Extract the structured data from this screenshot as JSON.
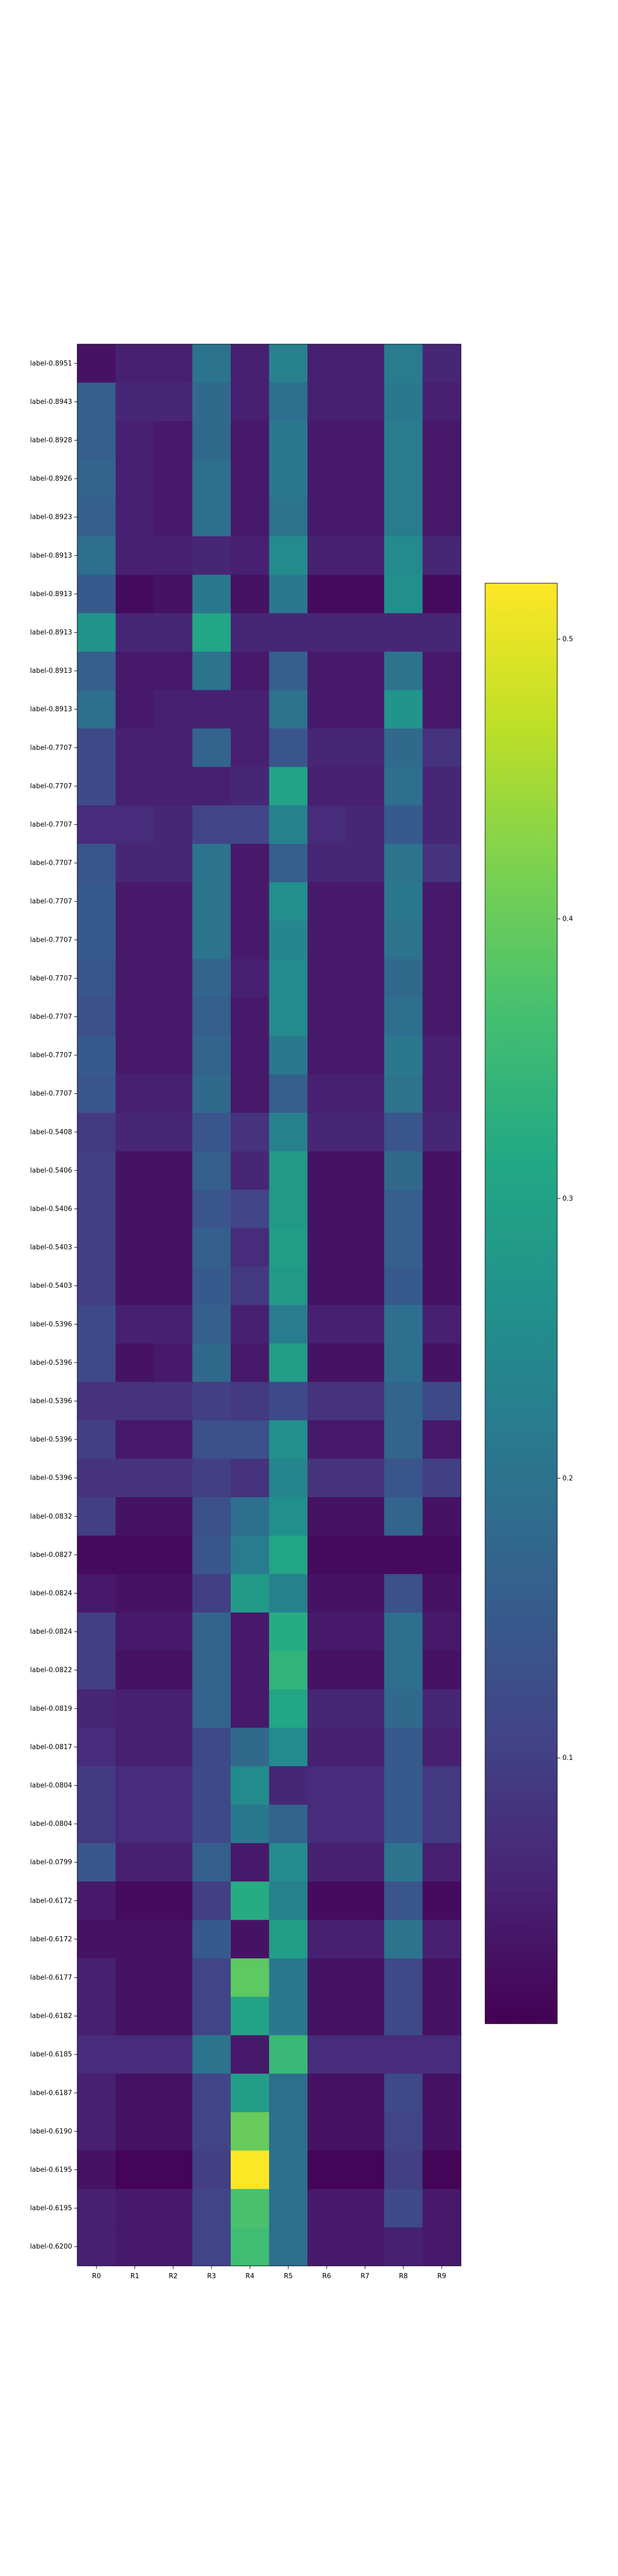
{
  "chart_data": {
    "type": "heatmap",
    "title": "",
    "xlabel": "",
    "ylabel": "",
    "columns": [
      "R0",
      "R1",
      "R2",
      "R3",
      "R4",
      "R5",
      "R6",
      "R7",
      "R8",
      "R9"
    ],
    "rows": [
      {
        "label": "label-0.8951",
        "values": [
          0.03,
          0.05,
          0.05,
          0.2,
          0.05,
          0.23,
          0.05,
          0.05,
          0.22,
          0.06
        ]
      },
      {
        "label": "label-0.8943",
        "values": [
          0.16,
          0.06,
          0.06,
          0.18,
          0.05,
          0.19,
          0.05,
          0.05,
          0.21,
          0.05
        ]
      },
      {
        "label": "label-0.8928",
        "values": [
          0.16,
          0.05,
          0.04,
          0.18,
          0.04,
          0.21,
          0.04,
          0.04,
          0.22,
          0.04
        ]
      },
      {
        "label": "label-0.8926",
        "values": [
          0.17,
          0.05,
          0.04,
          0.19,
          0.04,
          0.21,
          0.04,
          0.04,
          0.22,
          0.04
        ]
      },
      {
        "label": "label-0.8923",
        "values": [
          0.16,
          0.05,
          0.04,
          0.19,
          0.04,
          0.2,
          0.04,
          0.04,
          0.22,
          0.04
        ]
      },
      {
        "label": "label-0.8913",
        "values": [
          0.19,
          0.05,
          0.05,
          0.06,
          0.05,
          0.25,
          0.05,
          0.05,
          0.25,
          0.06
        ]
      },
      {
        "label": "label-0.8913",
        "values": [
          0.15,
          0.02,
          0.03,
          0.21,
          0.03,
          0.21,
          0.02,
          0.02,
          0.26,
          0.02
        ]
      },
      {
        "label": "label-0.8913",
        "values": [
          0.27,
          0.06,
          0.06,
          0.31,
          0.06,
          0.06,
          0.06,
          0.06,
          0.06,
          0.06
        ]
      },
      {
        "label": "label-0.8913",
        "values": [
          0.16,
          0.04,
          0.04,
          0.2,
          0.04,
          0.16,
          0.04,
          0.04,
          0.2,
          0.04
        ]
      },
      {
        "label": "label-0.8913",
        "values": [
          0.19,
          0.04,
          0.05,
          0.05,
          0.05,
          0.2,
          0.04,
          0.04,
          0.27,
          0.04
        ]
      },
      {
        "label": "label-0.7707",
        "values": [
          0.12,
          0.05,
          0.05,
          0.17,
          0.05,
          0.14,
          0.06,
          0.06,
          0.18,
          0.08
        ]
      },
      {
        "label": "label-0.7707",
        "values": [
          0.12,
          0.05,
          0.05,
          0.05,
          0.06,
          0.3,
          0.05,
          0.05,
          0.19,
          0.06
        ]
      },
      {
        "label": "label-0.7707",
        "values": [
          0.07,
          0.07,
          0.06,
          0.11,
          0.11,
          0.23,
          0.07,
          0.06,
          0.15,
          0.06
        ]
      },
      {
        "label": "label-0.7707",
        "values": [
          0.14,
          0.06,
          0.06,
          0.2,
          0.04,
          0.16,
          0.06,
          0.06,
          0.2,
          0.08
        ]
      },
      {
        "label": "label-0.7707",
        "values": [
          0.15,
          0.04,
          0.04,
          0.2,
          0.04,
          0.26,
          0.04,
          0.04,
          0.21,
          0.04
        ]
      },
      {
        "label": "label-0.7707",
        "values": [
          0.15,
          0.04,
          0.04,
          0.2,
          0.04,
          0.24,
          0.04,
          0.04,
          0.2,
          0.04
        ]
      },
      {
        "label": "label-0.7707",
        "values": [
          0.14,
          0.04,
          0.04,
          0.17,
          0.05,
          0.25,
          0.04,
          0.04,
          0.18,
          0.04
        ]
      },
      {
        "label": "label-0.7707",
        "values": [
          0.13,
          0.04,
          0.04,
          0.16,
          0.04,
          0.25,
          0.04,
          0.04,
          0.19,
          0.04
        ]
      },
      {
        "label": "label-0.7707",
        "values": [
          0.15,
          0.04,
          0.04,
          0.17,
          0.04,
          0.21,
          0.04,
          0.04,
          0.21,
          0.05
        ]
      },
      {
        "label": "label-0.7707",
        "values": [
          0.14,
          0.05,
          0.05,
          0.18,
          0.04,
          0.16,
          0.05,
          0.05,
          0.2,
          0.05
        ]
      },
      {
        "label": "label-0.5408",
        "values": [
          0.09,
          0.06,
          0.06,
          0.14,
          0.08,
          0.23,
          0.06,
          0.06,
          0.14,
          0.06
        ]
      },
      {
        "label": "label-0.5406",
        "values": [
          0.1,
          0.03,
          0.03,
          0.16,
          0.06,
          0.28,
          0.03,
          0.03,
          0.18,
          0.03
        ]
      },
      {
        "label": "label-0.5406",
        "values": [
          0.1,
          0.03,
          0.03,
          0.14,
          0.11,
          0.28,
          0.03,
          0.03,
          0.16,
          0.03
        ]
      },
      {
        "label": "label-0.5403",
        "values": [
          0.1,
          0.03,
          0.03,
          0.16,
          0.07,
          0.29,
          0.03,
          0.03,
          0.16,
          0.03
        ]
      },
      {
        "label": "label-0.5403",
        "values": [
          0.1,
          0.03,
          0.03,
          0.15,
          0.09,
          0.28,
          0.03,
          0.03,
          0.15,
          0.03
        ]
      },
      {
        "label": "label-0.5396",
        "values": [
          0.12,
          0.05,
          0.05,
          0.16,
          0.05,
          0.22,
          0.05,
          0.05,
          0.19,
          0.05
        ]
      },
      {
        "label": "label-0.5396",
        "values": [
          0.12,
          0.03,
          0.04,
          0.18,
          0.04,
          0.29,
          0.03,
          0.03,
          0.19,
          0.03
        ]
      },
      {
        "label": "label-0.5396",
        "values": [
          0.08,
          0.08,
          0.08,
          0.1,
          0.09,
          0.12,
          0.08,
          0.08,
          0.17,
          0.12
        ]
      },
      {
        "label": "label-0.5396",
        "values": [
          0.1,
          0.04,
          0.04,
          0.13,
          0.13,
          0.26,
          0.04,
          0.04,
          0.17,
          0.04
        ]
      },
      {
        "label": "label-0.5396",
        "values": [
          0.08,
          0.08,
          0.08,
          0.1,
          0.08,
          0.24,
          0.08,
          0.08,
          0.14,
          0.1
        ]
      },
      {
        "label": "label-0.0832",
        "values": [
          0.1,
          0.03,
          0.03,
          0.13,
          0.19,
          0.26,
          0.03,
          0.03,
          0.17,
          0.03
        ]
      },
      {
        "label": "label-0.0827",
        "values": [
          0.02,
          0.02,
          0.02,
          0.14,
          0.22,
          0.31,
          0.02,
          0.02,
          0.02,
          0.02
        ]
      },
      {
        "label": "label-0.0824",
        "values": [
          0.04,
          0.03,
          0.03,
          0.1,
          0.28,
          0.23,
          0.03,
          0.03,
          0.13,
          0.03
        ]
      },
      {
        "label": "label-0.0824",
        "values": [
          0.1,
          0.04,
          0.04,
          0.17,
          0.04,
          0.32,
          0.04,
          0.04,
          0.19,
          0.04
        ]
      },
      {
        "label": "label-0.0822",
        "values": [
          0.1,
          0.03,
          0.03,
          0.17,
          0.04,
          0.34,
          0.03,
          0.03,
          0.19,
          0.03
        ]
      },
      {
        "label": "label-0.0819",
        "values": [
          0.06,
          0.05,
          0.05,
          0.17,
          0.04,
          0.31,
          0.06,
          0.06,
          0.18,
          0.06
        ]
      },
      {
        "label": "label-0.0817",
        "values": [
          0.07,
          0.05,
          0.05,
          0.12,
          0.18,
          0.25,
          0.05,
          0.05,
          0.15,
          0.05
        ]
      },
      {
        "label": "label-0.0804",
        "values": [
          0.09,
          0.07,
          0.07,
          0.12,
          0.25,
          0.06,
          0.07,
          0.07,
          0.15,
          0.09
        ]
      },
      {
        "label": "label-0.0804",
        "values": [
          0.09,
          0.07,
          0.07,
          0.12,
          0.21,
          0.17,
          0.07,
          0.07,
          0.15,
          0.09
        ]
      },
      {
        "label": "label-0.0799",
        "values": [
          0.14,
          0.05,
          0.05,
          0.16,
          0.04,
          0.25,
          0.05,
          0.05,
          0.2,
          0.05
        ]
      },
      {
        "label": "label-0.6172",
        "values": [
          0.04,
          0.02,
          0.02,
          0.1,
          0.32,
          0.23,
          0.02,
          0.02,
          0.14,
          0.02
        ]
      },
      {
        "label": "label-0.6172",
        "values": [
          0.03,
          0.03,
          0.03,
          0.15,
          0.03,
          0.29,
          0.05,
          0.05,
          0.2,
          0.05
        ]
      },
      {
        "label": "label-0.6177",
        "values": [
          0.05,
          0.03,
          0.03,
          0.11,
          0.39,
          0.21,
          0.03,
          0.03,
          0.12,
          0.03
        ]
      },
      {
        "label": "label-0.6182",
        "values": [
          0.05,
          0.03,
          0.03,
          0.11,
          0.3,
          0.21,
          0.03,
          0.03,
          0.12,
          0.03
        ]
      },
      {
        "label": "label-0.6185",
        "values": [
          0.07,
          0.07,
          0.07,
          0.2,
          0.04,
          0.35,
          0.07,
          0.07,
          0.07,
          0.07
        ]
      },
      {
        "label": "label-0.6187",
        "values": [
          0.05,
          0.03,
          0.03,
          0.11,
          0.29,
          0.19,
          0.03,
          0.03,
          0.12,
          0.03
        ]
      },
      {
        "label": "label-0.6190",
        "values": [
          0.05,
          0.03,
          0.03,
          0.11,
          0.4,
          0.19,
          0.03,
          0.03,
          0.11,
          0.03
        ]
      },
      {
        "label": "label-0.6195",
        "values": [
          0.03,
          0.01,
          0.01,
          0.1,
          0.52,
          0.19,
          0.01,
          0.01,
          0.1,
          0.01
        ]
      },
      {
        "label": "label-0.6195",
        "values": [
          0.05,
          0.04,
          0.04,
          0.11,
          0.37,
          0.19,
          0.04,
          0.04,
          0.12,
          0.04
        ]
      },
      {
        "label": "label-0.6200",
        "values": [
          0.05,
          0.04,
          0.04,
          0.11,
          0.36,
          0.19,
          0.04,
          0.04,
          0.05,
          0.04
        ]
      }
    ],
    "colormap": "viridis",
    "colorbar": {
      "vmin": 0.005,
      "vmax": 0.52,
      "ticks": [
        0.1,
        0.2,
        0.3,
        0.4,
        0.5
      ],
      "tick_labels": [
        "0.1",
        "0.2",
        "0.3",
        "0.4",
        "0.5"
      ]
    },
    "grid": false,
    "legend": "none"
  }
}
